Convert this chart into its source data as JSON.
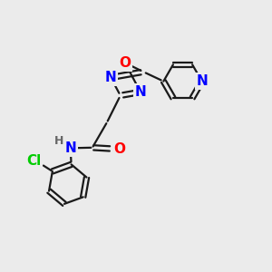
{
  "background_color": "#ebebeb",
  "bond_color": "#1a1a1a",
  "atom_colors": {
    "N": "#0000ff",
    "O": "#ff0000",
    "Cl": "#00cc00",
    "H": "#666666",
    "C": "#1a1a1a"
  },
  "line_width": 1.6,
  "dbl_sep": 0.09,
  "font_size": 11,
  "fig_size": [
    3.0,
    3.0
  ],
  "dpi": 100
}
